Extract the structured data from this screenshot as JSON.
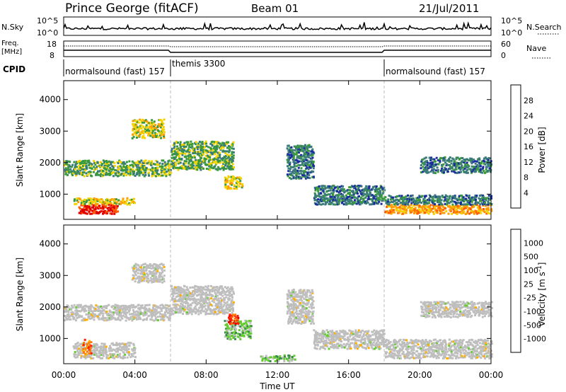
{
  "header": {
    "station": "Prince George (fitACF)",
    "beam": "Beam 01",
    "date": "21/Jul/2011"
  },
  "noise_panel": {
    "left_label": "N.Sky",
    "left_ticks": [
      "10^5",
      "10^0"
    ],
    "right_ticks": [
      "10^5",
      "10^0"
    ],
    "right_label": "N.Search"
  },
  "freq_panel": {
    "left_label_1": "Freq.",
    "left_label_2": "[MHz]",
    "left_ticks": [
      "18",
      "8"
    ],
    "right_ticks": [
      "60",
      "0"
    ],
    "right_label": "Nave"
  },
  "cpid_panel": {
    "label": "CPID",
    "segments": [
      {
        "name": "normalsound (fast) 157",
        "start_hour": 0,
        "end_hour": 6
      },
      {
        "name": "themis 3300",
        "start_hour": 6,
        "end_hour": 18
      },
      {
        "name": "normalsound (fast) 157",
        "start_hour": 18,
        "end_hour": 24
      }
    ]
  },
  "chart_data": [
    {
      "type": "heatmap",
      "name": "power",
      "ylabel": "Slant Range [km]",
      "yticks": [
        1000,
        2000,
        3000,
        4000
      ],
      "ylim": [
        200,
        4600
      ],
      "xlim": [
        0,
        24
      ],
      "colorbar": {
        "label": "Power [dB]",
        "ticks": [
          "28",
          "24",
          "20",
          "16",
          "12",
          "8",
          "4"
        ],
        "colors": [
          "#e00000",
          "#ff5a00",
          "#ff9a00",
          "#f4d200",
          "#3a9a3a",
          "#3a7a7a",
          "#1a2aa0",
          "#0000ff"
        ]
      },
      "bands": [
        {
          "t0": 0.0,
          "t1": 6.0,
          "r0": 1600,
          "r1": 2100,
          "level": 3
        },
        {
          "t0": 0.8,
          "t1": 3.0,
          "r0": 400,
          "r1": 700,
          "level": 7
        },
        {
          "t0": 0.5,
          "t1": 4.0,
          "r0": 700,
          "r1": 900,
          "level": 4
        },
        {
          "t0": 3.8,
          "t1": 5.6,
          "r0": 2800,
          "r1": 3400,
          "level": 4
        },
        {
          "t0": 6.0,
          "t1": 9.5,
          "r0": 1800,
          "r1": 2700,
          "level": 3
        },
        {
          "t0": 9.0,
          "t1": 10.0,
          "r0": 1200,
          "r1": 1600,
          "level": 4
        },
        {
          "t0": 12.5,
          "t1": 14.0,
          "r0": 1500,
          "r1": 2600,
          "level": 2
        },
        {
          "t0": 14.0,
          "t1": 18.0,
          "r0": 700,
          "r1": 1300,
          "level": 2
        },
        {
          "t0": 18.0,
          "t1": 24.0,
          "r0": 400,
          "r1": 700,
          "level": 5
        },
        {
          "t0": 18.0,
          "t1": 24.0,
          "r0": 700,
          "r1": 1000,
          "level": 2
        },
        {
          "t0": 20.0,
          "t1": 24.0,
          "r0": 1700,
          "r1": 2200,
          "level": 2
        }
      ]
    },
    {
      "type": "heatmap",
      "name": "velocity",
      "ylabel": "Slant Range [km]",
      "yticks": [
        1000,
        2000,
        3000,
        4000
      ],
      "ylim": [
        200,
        4600
      ],
      "xlim": [
        0,
        24
      ],
      "xticks": [
        "00:00",
        "04:00",
        "08:00",
        "12:00",
        "16:00",
        "20:00",
        "00:00"
      ],
      "xlabel": "Time UT",
      "colorbar": {
        "label": "Velocity [m s^-1]",
        "ticks": [
          "1000",
          "500",
          "100",
          "25",
          "-25",
          "-100",
          "-500",
          "-1000"
        ],
        "colors": [
          "#1a3aa8",
          "#3a6a9a",
          "#3a8a4a",
          "#66cc33",
          "#bebebe",
          "#ffb000",
          "#ff7a00",
          "#ff2000",
          "#e00000"
        ]
      },
      "bands": [
        {
          "t0": 0.0,
          "t1": 6.0,
          "r0": 1600,
          "r1": 2100,
          "level": 4
        },
        {
          "t0": 0.5,
          "t1": 4.0,
          "r0": 400,
          "r1": 900,
          "level": 4
        },
        {
          "t0": 1.0,
          "t1": 1.5,
          "r0": 500,
          "r1": 1000,
          "level": 6
        },
        {
          "t0": 3.8,
          "t1": 5.6,
          "r0": 2800,
          "r1": 3400,
          "level": 4
        },
        {
          "t0": 6.0,
          "t1": 9.5,
          "r0": 1800,
          "r1": 2700,
          "level": 4
        },
        {
          "t0": 9.0,
          "t1": 10.5,
          "r0": 1000,
          "r1": 1600,
          "level": 3
        },
        {
          "t0": 9.2,
          "t1": 9.8,
          "r0": 1500,
          "r1": 1800,
          "level": 7
        },
        {
          "t0": 11.0,
          "t1": 13.0,
          "r0": 300,
          "r1": 500,
          "level": 3
        },
        {
          "t0": 12.5,
          "t1": 14.0,
          "r0": 1500,
          "r1": 2600,
          "level": 4
        },
        {
          "t0": 14.0,
          "t1": 18.0,
          "r0": 700,
          "r1": 1300,
          "level": 4
        },
        {
          "t0": 18.0,
          "t1": 24.0,
          "r0": 400,
          "r1": 1000,
          "level": 4
        },
        {
          "t0": 20.0,
          "t1": 24.0,
          "r0": 1700,
          "r1": 2200,
          "level": 4
        }
      ]
    }
  ]
}
